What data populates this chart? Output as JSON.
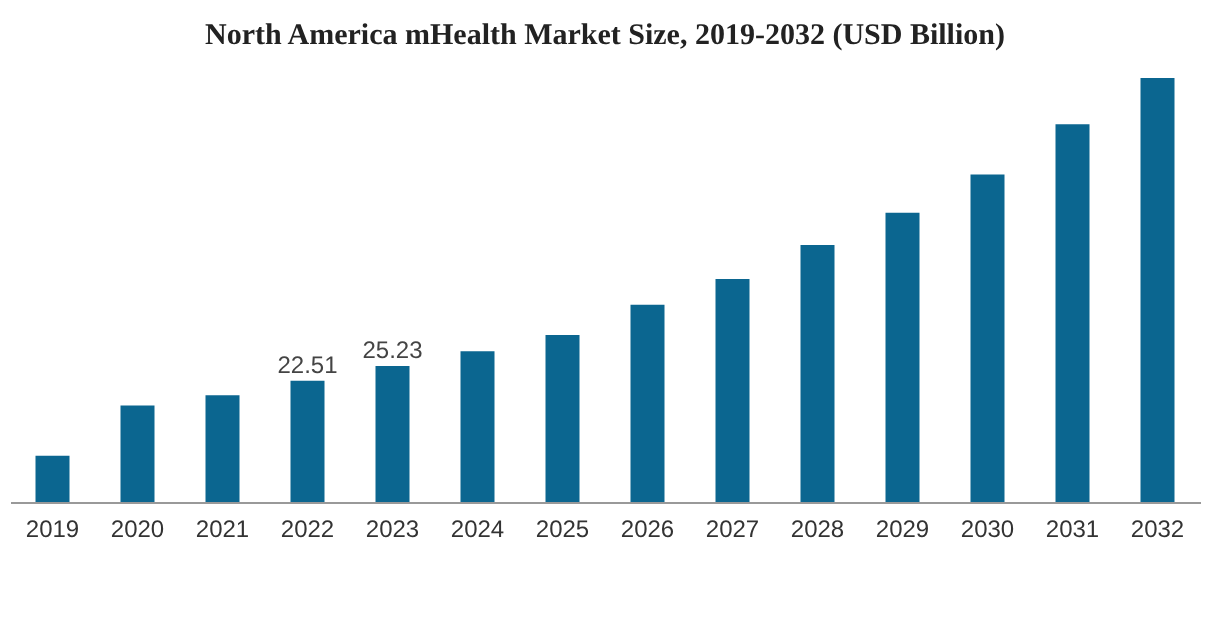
{
  "chart_data": {
    "type": "bar",
    "title": "North America mHealth Market Size, 2019-2032 (USD Billion)",
    "categories": [
      "2019",
      "2020",
      "2021",
      "2022",
      "2023",
      "2024",
      "2025",
      "2026",
      "2027",
      "2028",
      "2029",
      "2030",
      "2031",
      "2032"
    ],
    "values": [
      8.6,
      17.9,
      19.8,
      22.51,
      25.23,
      28.0,
      31.0,
      36.6,
      41.4,
      47.7,
      53.7,
      60.8,
      70.1,
      78.7
    ],
    "value_labels": [
      null,
      null,
      null,
      "22.51",
      "25.23",
      null,
      null,
      null,
      null,
      null,
      null,
      null,
      null,
      null
    ],
    "color": "#0b6690",
    "grid": false
  }
}
